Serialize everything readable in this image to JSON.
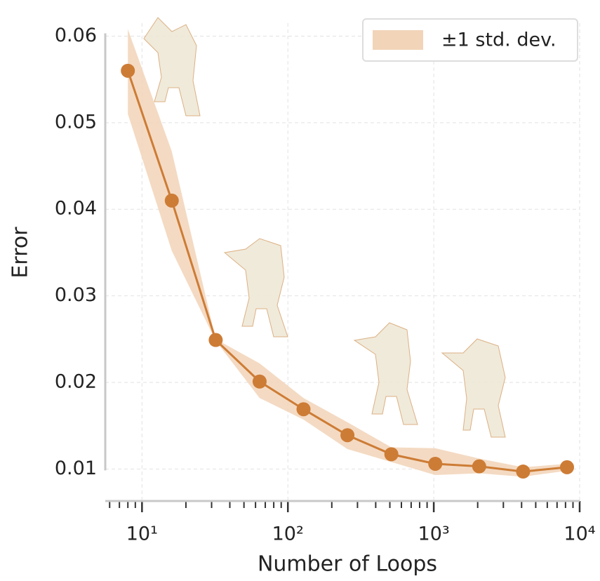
{
  "chart_data": {
    "type": "line",
    "xlabel": "Number of Loops",
    "ylabel": "Error",
    "x": [
      8,
      16,
      32,
      64,
      128,
      256,
      512,
      1024,
      2048,
      4096,
      8192
    ],
    "values": [
      0.056,
      0.041,
      0.0249,
      0.0201,
      0.0169,
      0.0139,
      0.0117,
      0.0106,
      0.0103,
      0.0097,
      0.0102
    ],
    "color": "#cd7c35",
    "band": {
      "name": "±1 std. dev.",
      "color": "#f2d4b9",
      "upper": [
        0.0608,
        0.0467,
        0.025,
        0.0222,
        0.0182,
        0.0154,
        0.0125,
        0.0124,
        0.0112,
        0.0102,
        0.0106
      ],
      "lower": [
        0.051,
        0.0352,
        0.0248,
        0.0182,
        0.0157,
        0.0123,
        0.0108,
        0.0093,
        0.0095,
        0.0091,
        0.0098
      ]
    },
    "xscale": "log",
    "xlim": [
      5.6,
      10000
    ],
    "xticks": [
      {
        "value": 10,
        "label": "10¹"
      },
      {
        "value": 100,
        "label": "10²"
      },
      {
        "value": 1000,
        "label": "10³"
      },
      {
        "value": 10000,
        "label": "10⁴"
      }
    ],
    "xminor_ticks": [
      6,
      7,
      8,
      9,
      20,
      30,
      40,
      50,
      60,
      70,
      80,
      90,
      200,
      300,
      400,
      500,
      600,
      700,
      800,
      900,
      2000,
      3000,
      4000,
      5000,
      6000,
      7000,
      8000,
      9000
    ],
    "ylim": [
      0.0063,
      0.0615
    ],
    "yticks": [
      0.01,
      0.02,
      0.03,
      0.04,
      0.05,
      0.06
    ],
    "grid": true,
    "legend": "upper right"
  }
}
